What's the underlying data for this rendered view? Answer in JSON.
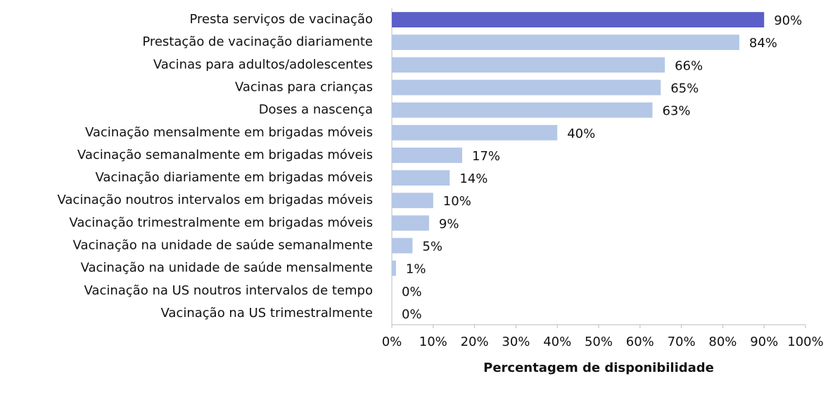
{
  "chart_data": {
    "type": "barh",
    "xlabel": "Percentagem de disponibilidade",
    "categories": [
      "Presta serviços de vacinação",
      "Prestação de vacinação diariamente",
      "Vacinas para adultos/adolescentes",
      "Vacinas para crianças",
      "Doses a nascença",
      "Vacinação mensalmente em brigadas móveis",
      "Vacinação semanalmente em brigadas móveis",
      "Vacinação diariamente em brigadas móveis",
      "Vacinação noutros intervalos em brigadas móveis",
      "Vacinação trimestralmente em brigadas móveis",
      "Vacinação na unidade de saúde semanalmente",
      "Vacinação na unidade de saúde mensalmente",
      "Vacinação na US noutros intervalos de tempo",
      "Vacinação na US trimestralmente"
    ],
    "values": [
      90,
      84,
      66,
      65,
      63,
      40,
      17,
      14,
      10,
      9,
      5,
      1,
      0,
      0
    ],
    "value_labels": [
      "90%",
      "84%",
      "66%",
      "65%",
      "63%",
      "40%",
      "17%",
      "14%",
      "10%",
      "9%",
      "5%",
      "1%",
      "0%",
      "0%"
    ],
    "colors": [
      "#5b5fc7",
      "#b4c7e7",
      "#b4c7e7",
      "#b4c7e7",
      "#b4c7e7",
      "#b4c7e7",
      "#b4c7e7",
      "#b4c7e7",
      "#b4c7e7",
      "#b4c7e7",
      "#b4c7e7",
      "#b4c7e7",
      "#b4c7e7",
      "#b4c7e7"
    ],
    "xlim": [
      0,
      100
    ],
    "xticks": [
      {
        "value": 0,
        "label": "0%"
      },
      {
        "value": 10,
        "label": "10%"
      },
      {
        "value": 20,
        "label": "20%"
      },
      {
        "value": 30,
        "label": "30%"
      },
      {
        "value": 40,
        "label": "40%"
      },
      {
        "value": 50,
        "label": "50%"
      },
      {
        "value": 60,
        "label": "60%"
      },
      {
        "value": 70,
        "label": "70%"
      },
      {
        "value": 80,
        "label": "80%"
      },
      {
        "value": 90,
        "label": "90%"
      },
      {
        "value": 100,
        "label": "100%"
      }
    ]
  }
}
